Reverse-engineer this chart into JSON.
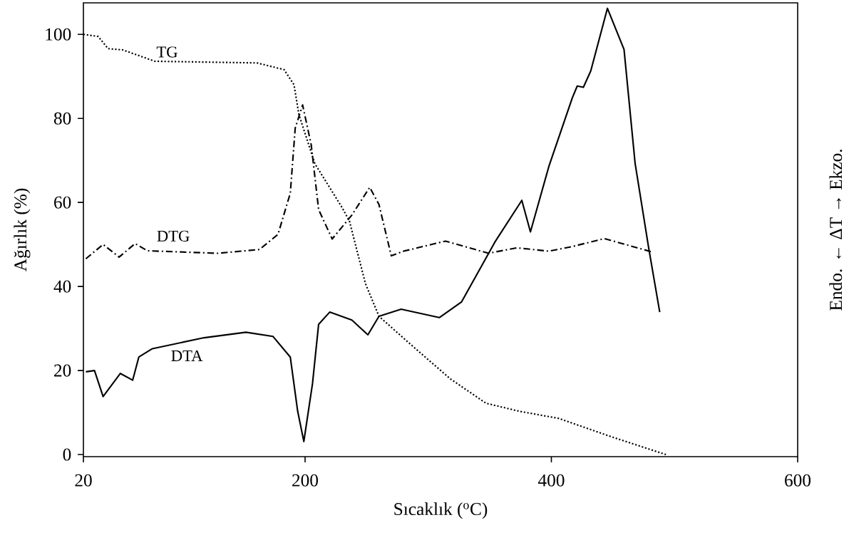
{
  "chart_data": {
    "type": "line",
    "xlabel": "Sıcaklık ($^{o}$C)",
    "ylabel": "Ağırlık (%)",
    "y2label": "Endo. ← ΔT → Ekzo.",
    "xlim": [
      20,
      600
    ],
    "ylim": [
      -0.5,
      107.5
    ],
    "xticks": [
      20,
      200,
      400,
      600
    ],
    "yticks": [
      0,
      20,
      40,
      60,
      80,
      100
    ],
    "grid": false,
    "legend": false,
    "marker": "none",
    "series": [
      {
        "name": "TG",
        "color": "#000000",
        "line_style": "dotted",
        "x": [
          20,
          32,
          40,
          52,
          78,
          161,
          183,
          191,
          195,
          208,
          230,
          236,
          249,
          260,
          285,
          318,
          347,
          374,
          406,
          450,
          493
        ],
        "values": [
          100,
          99.5,
          96.6,
          96.3,
          93.6,
          93.2,
          91.6,
          88,
          80.9,
          69.2,
          58.8,
          55.6,
          40.7,
          32.9,
          26.4,
          18,
          12.2,
          10.3,
          8.6,
          4.1,
          0
        ]
      },
      {
        "name": "DTG",
        "color": "#000000",
        "line_style": "dashdot",
        "x": [
          22,
          36,
          49,
          62,
          72,
          129,
          163,
          178,
          188,
          192,
          198,
          205,
          211,
          222,
          238,
          252.5,
          260,
          270,
          280,
          314,
          349,
          372,
          398,
          417,
          443,
          482
        ],
        "values": [
          46.6,
          50,
          47,
          50.2,
          48.5,
          47.9,
          48.8,
          52.4,
          62.2,
          77.7,
          83.2,
          73.7,
          58.3,
          51.3,
          57,
          63.6,
          59.5,
          47.3,
          48.4,
          50.8,
          47.9,
          49.2,
          48.4,
          49.5,
          51.4,
          48.2
        ]
      },
      {
        "name": "DTA",
        "color": "#000000",
        "line_style": "solid",
        "x": [
          22,
          29,
          36,
          50,
          60,
          65,
          76,
          118,
          152,
          174,
          188,
          194,
          199,
          206,
          211,
          220,
          238,
          251,
          260,
          278,
          309,
          327,
          354,
          376,
          383,
          398,
          417,
          421,
          426,
          432,
          445.5,
          459,
          468,
          479,
          488
        ],
        "values": [
          19.7,
          20,
          13.8,
          19.3,
          17.7,
          23.2,
          25.2,
          27.8,
          29.1,
          28.1,
          23.2,
          10.3,
          3.1,
          16.8,
          31,
          33.9,
          32,
          28.5,
          32.9,
          34.6,
          32.6,
          36.3,
          50.5,
          60.5,
          53,
          68.6,
          84.9,
          87.7,
          87.4,
          91.3,
          106.2,
          96.4,
          69.3,
          49.2,
          33.9
        ]
      }
    ]
  }
}
